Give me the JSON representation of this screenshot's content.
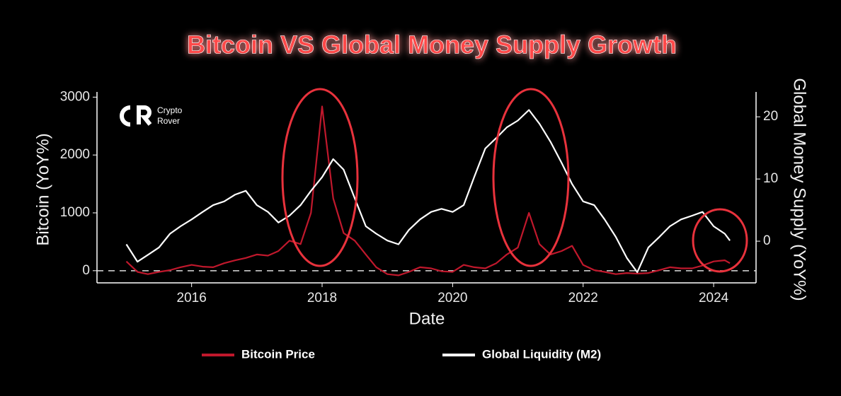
{
  "chart_data": {
    "type": "line",
    "title": "Bitcoin VS Global Money Supply Growth",
    "x_label": "Date",
    "y_label": "Bitcoin (YoY%)",
    "y2_label": "Global Money Supply (YoY%)",
    "logo": [
      "Crypto",
      "Rover"
    ],
    "x": [
      2015.0,
      2015.17,
      2015.33,
      2015.5,
      2015.67,
      2015.83,
      2016.0,
      2016.17,
      2016.33,
      2016.5,
      2016.67,
      2016.83,
      2017.0,
      2017.17,
      2017.33,
      2017.5,
      2017.67,
      2017.83,
      2018.0,
      2018.17,
      2018.33,
      2018.5,
      2018.67,
      2018.83,
      2019.0,
      2019.17,
      2019.33,
      2019.5,
      2019.67,
      2019.83,
      2020.0,
      2020.17,
      2020.33,
      2020.5,
      2020.67,
      2020.83,
      2021.0,
      2021.17,
      2021.33,
      2021.5,
      2021.67,
      2021.83,
      2022.0,
      2022.17,
      2022.33,
      2022.5,
      2022.67,
      2022.83,
      2023.0,
      2023.17,
      2023.33,
      2023.5,
      2023.67,
      2023.83,
      2024.0,
      2024.17,
      2024.25
    ],
    "series": [
      {
        "name": "Bitcoin Price",
        "color": "#c0182c",
        "axis": "y",
        "values": [
          160,
          -20,
          -60,
          -20,
          10,
          60,
          100,
          70,
          60,
          130,
          180,
          220,
          280,
          260,
          340,
          520,
          460,
          1000,
          2840,
          1250,
          650,
          520,
          280,
          60,
          -60,
          -80,
          -20,
          60,
          40,
          -10,
          -20,
          100,
          60,
          40,
          130,
          280,
          400,
          1000,
          460,
          280,
          340,
          430,
          100,
          10,
          -20,
          -60,
          -40,
          -50,
          -40,
          10,
          60,
          40,
          40,
          90,
          160,
          180,
          130
        ]
      },
      {
        "name": "Global Liquidity (M2)",
        "color": "#ffffff",
        "axis": "y2",
        "values": [
          -0.5,
          -3.3,
          -2.2,
          -1,
          1.2,
          2.4,
          3.5,
          4.7,
          5.8,
          6.4,
          7.5,
          8.1,
          5.8,
          4.7,
          3,
          4.1,
          5.8,
          8.1,
          10.3,
          13.2,
          11.5,
          6.9,
          2.4,
          1.2,
          0.1,
          -0.5,
          1.8,
          3.5,
          4.7,
          5.2,
          4.7,
          5.8,
          10.3,
          14.9,
          16.6,
          18.3,
          19.4,
          21.1,
          18.9,
          16,
          12.6,
          9.2,
          6.4,
          5.8,
          3.5,
          0.7,
          -2.7,
          -5,
          -1,
          0.7,
          2.4,
          3.5,
          4.1,
          4.7,
          2.4,
          1.2,
          0.1
        ]
      }
    ],
    "xlim": [
      2014.55,
      2024.65
    ],
    "xticks": [
      2016,
      2018,
      2020,
      2022,
      2024
    ],
    "ylim": [
      -210,
      3090
    ],
    "yticks": [
      0,
      1000,
      2000,
      3000
    ],
    "y2lim": [
      -6.7,
      24
    ],
    "y2ticks": [
      0,
      10,
      20
    ],
    "zero_line": true,
    "grid": false
  }
}
